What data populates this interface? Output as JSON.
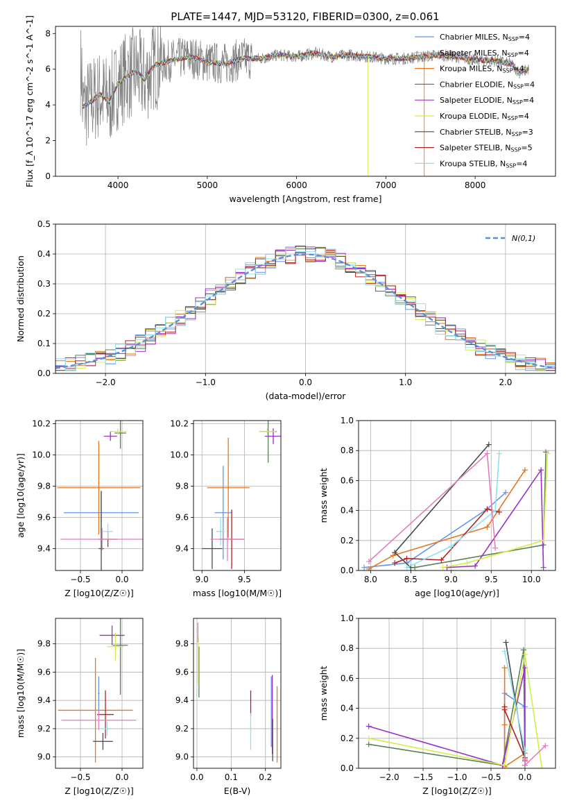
{
  "figure": {
    "title": "PLATE=1447, MJD=53120, FIBERID=0300, z=0.061",
    "models": [
      {
        "name": "Chabrier MILES",
        "nssp": "4",
        "color": "#6495ed"
      },
      {
        "name": "Salpeter MILES",
        "nssp": "4",
        "color": "#a6b3c8"
      },
      {
        "name": "Kroupa MILES",
        "nssp": "4",
        "color": "#e8761e"
      },
      {
        "name": "Chabrier ELODIE",
        "nssp": "4",
        "color": "#5a7f5a"
      },
      {
        "name": "Salpeter ELODIE",
        "nssp": "4",
        "color": "#9b30c8"
      },
      {
        "name": "Kroupa ELODIE",
        "nssp": "4",
        "color": "#d4ec4a"
      },
      {
        "name": "Chabrier STELIB",
        "nssp": "3",
        "color": "#4a4a4a"
      },
      {
        "name": "Salpeter STELIB",
        "nssp": "5",
        "color": "#b22222"
      },
      {
        "name": "Kroupa STELIB",
        "nssp": "4",
        "color": "#8ee0ec"
      }
    ],
    "extra_colors": {
      "data": "#7f7f7f",
      "pink": "#e57bbe"
    }
  },
  "chart_data": [
    {
      "id": "spectrum",
      "type": "line",
      "xlabel": "wavelength [Angstrom, rest frame]",
      "ylabel": "Flux [f_λ 10^-17 erg cm^-2 s^-1 A^-1]",
      "xlim": [
        3300,
        8900
      ],
      "ylim": [
        0,
        8.4
      ],
      "xticks": [
        4000,
        5000,
        6000,
        7000,
        8000
      ],
      "yticks": [
        0,
        2,
        4,
        6,
        8
      ],
      "legend_position": "right",
      "series_note": "observed spectrum (gray) plus 9 model fits",
      "profile": [
        [
          3600,
          3.9
        ],
        [
          3700,
          4.2
        ],
        [
          3800,
          4.6
        ],
        [
          3900,
          4.2
        ],
        [
          4000,
          5.2
        ],
        [
          4100,
          5.6
        ],
        [
          4200,
          5.9
        ],
        [
          4300,
          5.4
        ],
        [
          4400,
          6.2
        ],
        [
          4600,
          6.5
        ],
        [
          4800,
          6.7
        ],
        [
          5000,
          6.4
        ],
        [
          5200,
          6.3
        ],
        [
          5400,
          6.6
        ],
        [
          5600,
          6.6
        ],
        [
          5800,
          6.8
        ],
        [
          6000,
          6.7
        ],
        [
          6200,
          6.9
        ],
        [
          6400,
          6.7
        ],
        [
          6600,
          6.8
        ],
        [
          6800,
          6.7
        ],
        [
          7000,
          6.6
        ],
        [
          7200,
          6.6
        ],
        [
          7400,
          6.7
        ],
        [
          7600,
          6.8
        ],
        [
          7800,
          6.7
        ],
        [
          8000,
          6.5
        ],
        [
          8200,
          6.5
        ],
        [
          8400,
          6.3
        ],
        [
          8500,
          5.8
        ],
        [
          8600,
          6.0
        ]
      ],
      "spikes": [
        {
          "x": 6800,
          "y": 0
        },
        {
          "x": 7430,
          "y": 0
        }
      ]
    },
    {
      "id": "residuals",
      "type": "bar",
      "xlabel": "(data-model)/error",
      "ylabel": "Normed distribution",
      "xlim": [
        -2.5,
        2.5
      ],
      "ylim": [
        0,
        0.5
      ],
      "xticks": [
        -2,
        -1,
        0,
        1,
        2
      ],
      "yticks": [
        0.0,
        0.1,
        0.2,
        0.3,
        0.4,
        0.5
      ],
      "bin_width": 0.1,
      "legend": "N(0,1)",
      "legend_position": "top-right"
    },
    {
      "id": "age_vs_Z",
      "type": "scatter",
      "xlabel": "Z [log10(Z/Z☉)]",
      "ylabel": "age [log10(age/yr)]",
      "xlim": [
        -0.8,
        0.25
      ],
      "ylim": [
        9.26,
        10.22
      ],
      "xticks": [
        -0.5,
        0.0
      ],
      "yticks": [
        9.4,
        9.6,
        9.8,
        10.0,
        10.2
      ],
      "points": [
        {
          "model": 0,
          "x": -0.25,
          "y": 9.63,
          "xerr": 0.45,
          "yerr": 0.13
        },
        {
          "model": 2,
          "x": -0.28,
          "y": 9.79,
          "xerr": 0.5,
          "yerr": 0.3
        },
        {
          "model": 3,
          "x": -0.02,
          "y": 10.14,
          "xerr": 0.07,
          "yerr": 0.1
        },
        {
          "model": 4,
          "x": -0.14,
          "y": 10.12,
          "xerr": 0.08,
          "yerr": 0.03
        },
        {
          "model": 5,
          "x": -0.05,
          "y": 10.15,
          "xerr": 0.1,
          "yerr": 0.02
        },
        {
          "model": 6,
          "x": -0.25,
          "y": 9.4,
          "xerr": 0.03,
          "yerr": 0.37
        },
        {
          "model": 7,
          "x": -0.17,
          "y": 9.46,
          "xerr": 0.12,
          "yerr": 0.05
        },
        {
          "model": 8,
          "x": -0.17,
          "y": 9.51,
          "xerr": 0.06,
          "yerr": 0.05
        },
        {
          "model": 9,
          "x": -0.24,
          "y": 9.46,
          "xerr": 0.5,
          "yerr": 0.07
        }
      ]
    },
    {
      "id": "age_vs_mass",
      "type": "scatter",
      "xlabel": "mass [log10(M/M☉)]",
      "ylabel": "",
      "xlim": [
        8.9,
        9.93
      ],
      "ylim": [
        9.26,
        10.22
      ],
      "xticks": [
        9.0,
        9.5
      ],
      "yticks": [
        9.4,
        9.6,
        9.8,
        10.0,
        10.2
      ],
      "points": [
        {
          "model": 0,
          "x": 9.25,
          "y": 9.63,
          "xerr": 0.1,
          "yerr": 0.3
        },
        {
          "model": 2,
          "x": 9.31,
          "y": 9.79,
          "xerr": 0.25,
          "yerr": 0.32
        },
        {
          "model": 3,
          "x": 9.78,
          "y": 10.15,
          "xerr": 0.1,
          "yerr": 0.2
        },
        {
          "model": 4,
          "x": 9.84,
          "y": 10.12,
          "xerr": 0.1,
          "yerr": 0.05
        },
        {
          "model": 5,
          "x": 9.77,
          "y": 10.15,
          "xerr": 0.1,
          "yerr": 0.02
        },
        {
          "model": 6,
          "x": 9.12,
          "y": 9.4,
          "xerr": 0.12,
          "yerr": 0.13
        },
        {
          "model": 7,
          "x": 9.35,
          "y": 9.46,
          "xerr": 0.15,
          "yerr": 0.19
        },
        {
          "model": 8,
          "x": 9.22,
          "y": 9.51,
          "xerr": 0.05,
          "yerr": 0.09
        },
        {
          "model": 9,
          "x": 9.3,
          "y": 9.46,
          "xerr": 0.2,
          "yerr": 0.14
        }
      ]
    },
    {
      "id": "weight_vs_age",
      "type": "line",
      "xlabel": "age [log10(age/yr)]",
      "ylabel": "mass weight",
      "xlim": [
        7.85,
        10.3
      ],
      "ylim": [
        0,
        1.0
      ],
      "xticks": [
        8.0,
        8.5,
        9.0,
        9.5,
        10.0
      ],
      "yticks": [
        0.0,
        0.2,
        0.4,
        0.6,
        0.8,
        1.0
      ],
      "series": [
        {
          "model": 0,
          "x": [
            7.92,
            8.45,
            9.45,
            9.68
          ],
          "y": [
            0.02,
            0.05,
            0.41,
            0.52
          ]
        },
        {
          "model": 2,
          "x": [
            7.98,
            8.28,
            9.45,
            9.92
          ],
          "y": [
            0.01,
            0.1,
            0.29,
            0.67
          ]
        },
        {
          "model": 3,
          "x": [
            8.5,
            8.55,
            10.15,
            10.18
          ],
          "y": [
            0.02,
            0.02,
            0.17,
            0.79
          ]
        },
        {
          "model": 4,
          "x": [
            8.95,
            9.3,
            10.12,
            10.15
          ],
          "y": [
            0.02,
            0.03,
            0.67,
            0.02
          ]
        },
        {
          "model": 5,
          "x": [
            8.9,
            9.2,
            10.15,
            10.2
          ],
          "y": [
            0.02,
            0.05,
            0.2,
            0.78
          ]
        },
        {
          "model": 6,
          "x": [
            8.5,
            8.3,
            9.47
          ],
          "y": [
            0.02,
            0.12,
            0.84
          ]
        },
        {
          "model": 7,
          "x": [
            8.3,
            8.45,
            8.88,
            9.45,
            9.6
          ],
          "y": [
            0.05,
            0.08,
            0.07,
            0.41,
            0.39
          ]
        },
        {
          "model": 8,
          "x": [
            8.45,
            9.0,
            9.55,
            9.6
          ],
          "y": [
            0.02,
            0.16,
            0.4,
            0.78
          ]
        },
        {
          "model": 9,
          "x": [
            7.98,
            9.45,
            9.55
          ],
          "y": [
            0.06,
            0.78,
            0.15
          ]
        }
      ]
    },
    {
      "id": "mass_vs_Z",
      "type": "scatter",
      "xlabel": "Z [log10(Z/Z☉)]",
      "ylabel": "mass [log10(M/M☉)]",
      "xlim": [
        -0.8,
        0.25
      ],
      "ylim": [
        8.92,
        9.98
      ],
      "xticks": [
        -0.5,
        0.0
      ],
      "yticks": [
        9.0,
        9.2,
        9.4,
        9.6,
        9.8
      ],
      "points": [
        {
          "model": 0,
          "x": -0.28,
          "y": 9.45,
          "xerr": 0.01,
          "yerr": 0.12
        },
        {
          "model": 2,
          "x": -0.32,
          "y": 9.33,
          "xerr": 0.45,
          "yerr": 0.37
        },
        {
          "model": 3,
          "x": -0.02,
          "y": 9.79,
          "xerr": 0.09,
          "yerr": 0.35
        },
        {
          "model": 4,
          "x": -0.12,
          "y": 9.86,
          "xerr": 0.15,
          "yerr": 0.07
        },
        {
          "model": 5,
          "x": -0.08,
          "y": 9.78,
          "xerr": 0.1,
          "yerr": 0.1
        },
        {
          "model": 6,
          "x": -0.23,
          "y": 9.11,
          "xerr": 0.12,
          "yerr": 0.06
        },
        {
          "model": 7,
          "x": -0.2,
          "y": 9.3,
          "xerr": 0.1,
          "yerr": 0.17
        },
        {
          "model": 8,
          "x": -0.18,
          "y": 9.2,
          "xerr": 0.07,
          "yerr": 0.05
        },
        {
          "model": 9,
          "x": -0.28,
          "y": 9.26,
          "xerr": 0.45,
          "yerr": 0.07
        }
      ]
    },
    {
      "id": "mass_vs_ebv",
      "type": "scatter",
      "xlabel": "E(B-V)",
      "ylabel": "",
      "xlim": [
        -0.01,
        0.245
      ],
      "ylim": [
        8.92,
        9.98
      ],
      "xticks": [
        0.0,
        0.1,
        0.2
      ],
      "yticks": [
        9.0,
        9.2,
        9.4,
        9.6,
        9.8
      ],
      "points": [
        {
          "model": 0,
          "x": 0.217,
          "y": 9.32,
          "xerr": 0.0,
          "yerr": 0.25
        },
        {
          "model": 2,
          "x": 0.234,
          "y": 9.23,
          "xerr": 0.0,
          "yerr": 0.27
        },
        {
          "model": 3,
          "x": 0.006,
          "y": 9.6,
          "xerr": 0.0,
          "yerr": 0.18
        },
        {
          "model": 4,
          "x": 0.22,
          "y": 9.3,
          "xerr": 0.0,
          "yerr": 0.28
        },
        {
          "model": 5,
          "x": 0.004,
          "y": 9.68,
          "xerr": 0.0,
          "yerr": 0.17
        },
        {
          "model": 6,
          "x": 0.221,
          "y": 9.12,
          "xerr": 0.0,
          "yerr": 0.15
        },
        {
          "model": 7,
          "x": 0.157,
          "y": 9.38,
          "xerr": 0.0,
          "yerr": 0.09
        },
        {
          "model": 8,
          "x": 0.157,
          "y": 9.18,
          "xerr": 0.0,
          "yerr": 0.13
        },
        {
          "model": 9,
          "x": 0.003,
          "y": 9.88,
          "xerr": 0.0,
          "yerr": 0.07
        }
      ]
    },
    {
      "id": "weight_vs_Z",
      "type": "line",
      "xlabel": "Z [log10(Z/Z☉)]",
      "ylabel": "mass weight",
      "xlim": [
        -2.45,
        0.45
      ],
      "ylim": [
        0,
        1.0
      ],
      "xticks": [
        -2.0,
        -1.5,
        -1.0,
        -0.5,
        0.0
      ],
      "yticks": [
        0.0,
        0.2,
        0.4,
        0.6,
        0.8,
        1.0
      ],
      "series": [
        {
          "model": 0,
          "x": [
            -0.3,
            -0.3,
            0.0,
            0.0
          ],
          "y": [
            0.01,
            0.5,
            0.41,
            0.02
          ]
        },
        {
          "model": 2,
          "x": [
            -0.3,
            -0.3,
            -0.3,
            0.0
          ],
          "y": [
            0.67,
            0.29,
            0.01,
            0.1
          ]
        },
        {
          "model": 3,
          "x": [
            -2.3,
            -0.33,
            -0.02,
            0.0
          ],
          "y": [
            0.16,
            0.02,
            0.79,
            0.02
          ]
        },
        {
          "model": 4,
          "x": [
            -2.3,
            -0.33,
            0.0,
            0.0
          ],
          "y": [
            0.28,
            0.02,
            0.67,
            0.02
          ]
        },
        {
          "model": 5,
          "x": [
            -2.3,
            -0.3,
            0.0,
            0.25
          ],
          "y": [
            0.2,
            0.02,
            0.76,
            0.0
          ]
        },
        {
          "model": 6,
          "x": [
            -0.28,
            0.0,
            0.0
          ],
          "y": [
            0.84,
            0.06,
            0.02
          ]
        },
        {
          "model": 7,
          "x": [
            -0.3,
            -0.3,
            0.0,
            0.0
          ],
          "y": [
            0.41,
            0.39,
            0.07,
            0.05
          ]
        },
        {
          "model": 8,
          "x": [
            -0.3,
            0.0,
            0.0
          ],
          "y": [
            0.78,
            0.12,
            0.02
          ]
        },
        {
          "model": 9,
          "x": [
            0.0,
            0.0,
            0.3
          ],
          "y": [
            0.06,
            0.02,
            0.15
          ]
        }
      ]
    }
  ]
}
